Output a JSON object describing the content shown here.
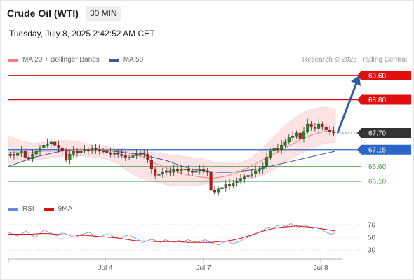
{
  "header": {
    "title": "Crude Oil (WTI)",
    "timeframe": "30 MIN",
    "datetime": "Tuesday, July 8, 2025 2:42:52 AM CET"
  },
  "legend": {
    "ma20": "MA 20 + Bollinger Bands",
    "ma50": "MA 50",
    "credit": "Research © 2025 Trading Central"
  },
  "rsi_legend": {
    "rsi": "RSI",
    "ma9": "9MA"
  },
  "colors": {
    "resistance": "#e01010",
    "support": "#3a9a3a",
    "pivot": "#2a66c9",
    "current": "#333333",
    "ma20": "#f08080",
    "ma50": "#3a5a9a",
    "bollinger_fill": "#fde0e0",
    "candle_up": "#1a8a1a",
    "candle_down": "#cc1111",
    "arrow": "#2a5fa8",
    "rsi_line": "#6a8ae8",
    "rsi_ma": "#e01010"
  },
  "chart_data": {
    "type": "candlestick",
    "title": "Crude Oil (WTI)",
    "timeframe": "30 MIN",
    "x_ticks": [
      "Jul 4",
      "Jul 7",
      "Jul 8"
    ],
    "ylim": [
      65.5,
      69.9
    ],
    "levels": [
      {
        "value": 69.6,
        "label": "69.60",
        "kind": "resistance"
      },
      {
        "value": 68.8,
        "label": "68.80",
        "kind": "resistance"
      },
      {
        "value": 67.7,
        "label": "67.70",
        "kind": "current"
      },
      {
        "value": 67.15,
        "label": "67.15",
        "kind": "pivot"
      },
      {
        "value": 66.6,
        "label": "66.60",
        "kind": "support"
      },
      {
        "value": 66.1,
        "label": "66.10",
        "kind": "support"
      }
    ],
    "ohlc_close_approx": [
      67.0,
      66.95,
      67.05,
      67.1,
      66.9,
      66.85,
      67.0,
      67.1,
      67.2,
      67.3,
      67.35,
      67.4,
      67.3,
      67.2,
      67.1,
      66.8,
      67.0,
      67.1,
      67.05,
      67.1,
      67.15,
      67.1,
      67.2,
      67.15,
      67.1,
      67.1,
      67.05,
      67.0,
      67.05,
      67.0,
      66.95,
      66.9,
      66.9,
      66.95,
      67.0,
      67.05,
      67.0,
      66.8,
      66.5,
      66.3,
      66.35,
      66.4,
      66.45,
      66.4,
      66.5,
      66.45,
      66.5,
      66.5,
      66.45,
      66.4,
      66.45,
      66.5,
      66.45,
      66.4,
      65.8,
      65.75,
      65.85,
      65.9,
      66.0,
      65.95,
      66.05,
      66.1,
      66.2,
      66.25,
      66.3,
      66.35,
      66.45,
      66.5,
      66.6,
      66.9,
      67.1,
      67.2,
      67.15,
      67.3,
      67.4,
      67.55,
      67.6,
      67.7,
      67.5,
      67.75,
      68.0,
      67.9,
      67.85,
      68.0,
      67.9,
      67.8,
      67.75,
      67.7
    ],
    "ma20_approx": [
      67.05,
      67.05,
      67.05,
      67.1,
      67.1,
      67.15,
      67.15,
      67.15,
      67.15,
      67.15,
      67.1,
      67.0,
      66.9,
      66.7,
      66.55,
      66.4,
      66.3,
      66.25,
      66.2,
      66.25,
      66.35,
      66.5,
      66.7,
      66.9,
      67.1,
      67.3,
      67.5,
      67.65,
      67.75,
      67.8
    ],
    "ma50_approx": [
      66.6,
      66.75,
      66.9,
      67.0,
      67.1,
      67.15,
      67.15,
      67.15,
      67.1,
      67.05,
      67.0,
      66.9,
      66.8,
      66.65,
      66.5,
      66.45,
      66.4,
      66.4,
      66.45,
      66.5,
      66.6,
      66.7,
      66.8,
      66.9,
      67.0,
      67.1
    ],
    "bollinger_upper_approx": [
      67.6,
      67.45,
      67.35,
      67.4,
      67.45,
      67.45,
      67.4,
      67.3,
      67.25,
      67.2,
      67.15,
      67.1,
      67.05,
      67.0,
      66.95,
      66.9,
      66.85,
      66.75,
      66.7,
      66.7,
      66.85,
      67.2,
      67.6,
      68.0,
      68.3,
      68.5,
      68.55,
      68.5
    ],
    "bollinger_lower_approx": [
      66.7,
      66.75,
      66.8,
      66.85,
      66.9,
      66.95,
      66.95,
      66.9,
      66.85,
      66.7,
      66.4,
      66.2,
      66.1,
      66.0,
      65.95,
      65.95,
      66.0,
      66.05,
      66.1,
      66.15,
      66.2,
      66.3,
      66.5,
      66.75,
      67.0,
      67.2,
      67.35,
      67.4
    ],
    "forecast_arrow": {
      "from": 67.7,
      "to": 69.6
    },
    "rsi": {
      "ylim": [
        20,
        80
      ],
      "ticks": [
        70,
        50,
        30
      ],
      "values_approx": [
        58,
        55,
        52,
        56,
        60,
        54,
        50,
        56,
        62,
        58,
        55,
        52,
        57,
        55,
        52,
        50,
        54,
        56,
        58,
        54,
        50,
        52,
        55,
        53,
        50,
        48,
        52,
        54,
        50,
        46,
        42,
        44,
        47,
        44,
        42,
        46,
        44,
        42,
        45,
        43,
        46,
        44,
        42,
        44,
        46,
        42,
        40,
        38,
        42,
        44,
        40,
        42,
        45,
        48,
        52,
        55,
        58,
        62,
        66,
        65,
        68,
        70,
        67,
        72,
        68,
        66,
        70,
        67,
        64,
        66,
        62,
        58,
        55,
        57
      ],
      "ma9_approx": [
        55,
        55,
        55,
        55,
        56,
        56,
        55,
        54,
        54,
        53,
        53,
        52,
        51,
        50,
        49,
        47,
        45,
        44,
        44,
        43,
        43,
        43,
        43,
        42,
        42,
        42,
        42,
        43,
        44,
        46,
        49,
        53,
        57,
        61,
        64,
        66,
        67,
        68,
        67,
        66,
        64,
        62,
        60
      ]
    }
  }
}
